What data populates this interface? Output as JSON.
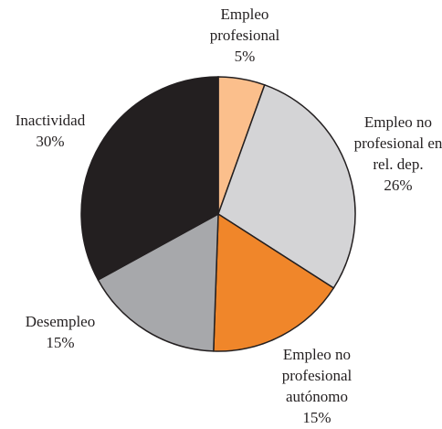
{
  "chart_data": {
    "type": "pie",
    "categories": [
      "Empleo profesional",
      "Empleo no profesional en rel. dep.",
      "Empleo no profesional autónomo",
      "Desempleo",
      "Inactividad"
    ],
    "values": [
      5,
      26,
      15,
      15,
      30
    ],
    "value_labels": [
      "5%",
      "26%",
      "15%",
      "15%",
      "30%"
    ],
    "colors": [
      "#fbbf8c",
      "#d4d4d6",
      "#f0862a",
      "#a7a8ab",
      "#231f20"
    ]
  }
}
